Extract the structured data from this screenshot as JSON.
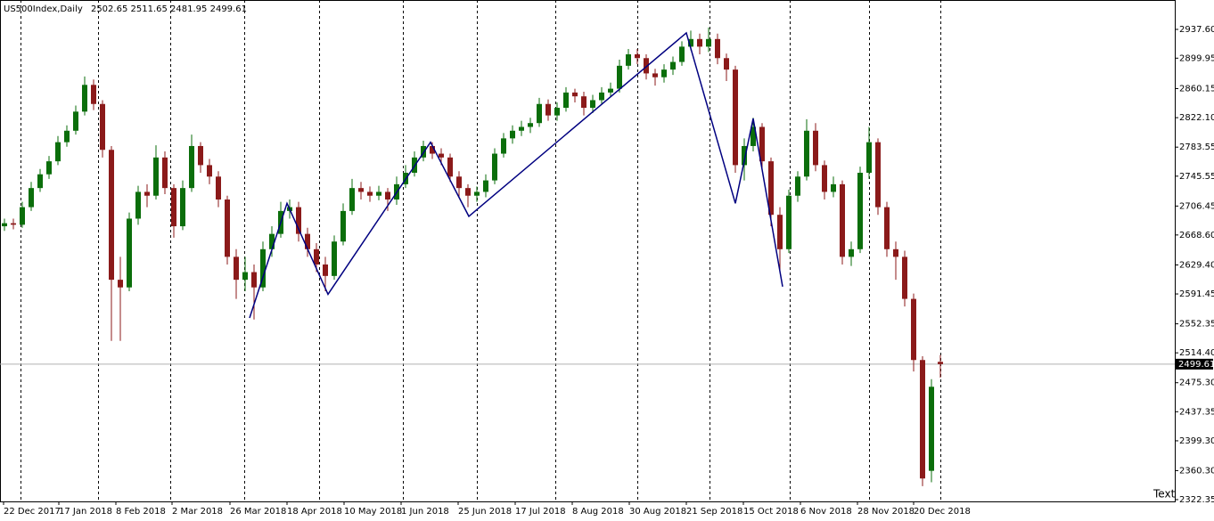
{
  "chart_data": {
    "type": "candlestick",
    "symbol": "US500Index,Daily",
    "annotation": "Text",
    "up_color": "#0b6e0b",
    "down_color": "#8b1a1a",
    "zigzag_color": "#000080",
    "xlim": [
      -0.5,
      131.3
    ],
    "ylim": [
      2320.0,
      2976.05
    ],
    "yticks": [
      {
        "value": 2937.6,
        "label": "2937.60"
      },
      {
        "value": 2899.95,
        "label": "2899.95"
      },
      {
        "value": 2860.15,
        "label": "2860.15"
      },
      {
        "value": 2822.1,
        "label": "2822.10"
      },
      {
        "value": 2783.55,
        "label": "2783.55"
      },
      {
        "value": 2745.55,
        "label": "2745.55"
      },
      {
        "value": 2706.45,
        "label": "2706.45"
      },
      {
        "value": 2668.6,
        "label": "2668.60"
      },
      {
        "value": 2629.4,
        "label": "2629.40"
      },
      {
        "value": 2591.45,
        "label": "2591.45"
      },
      {
        "value": 2552.35,
        "label": "2552.35"
      },
      {
        "value": 2514.4,
        "label": "2514.40"
      },
      {
        "value": 2475.3,
        "label": "2475.30"
      },
      {
        "value": 2437.35,
        "label": "2437.35"
      },
      {
        "value": 2399.3,
        "label": "2399.30"
      },
      {
        "value": 2360.3,
        "label": "2360.30"
      },
      {
        "value": 2322.35,
        "label": "2322.35"
      }
    ],
    "xticks": [
      {
        "value": -0.1,
        "label": "22 Dec 2017"
      },
      {
        "value": 6.1,
        "label": "17 Jan 2018"
      },
      {
        "value": 12.5,
        "label": "8 Feb 2018"
      },
      {
        "value": 18.8,
        "label": "2 Mar 2018"
      },
      {
        "value": 25.3,
        "label": "26 Mar 2018"
      },
      {
        "value": 31.7,
        "label": "18 Apr 2018"
      },
      {
        "value": 38.1,
        "label": "10 May 2018"
      },
      {
        "value": 44.5,
        "label": "1 Jun 2018"
      },
      {
        "value": 50.9,
        "label": "25 Jun 2018"
      },
      {
        "value": 57.3,
        "label": "17 Jul 2018"
      },
      {
        "value": 63.7,
        "label": "8 Aug 2018"
      },
      {
        "value": 70.1,
        "label": "30 Aug 2018"
      },
      {
        "value": 76.5,
        "label": "21 Sep 2018"
      },
      {
        "value": 82.9,
        "label": "15 Oct 2018"
      },
      {
        "value": 89.3,
        "label": "6 Nov 2018"
      },
      {
        "value": 95.7,
        "label": "28 Nov 2018"
      },
      {
        "value": 102,
        "label": "20 Dec 2018"
      }
    ],
    "xgrid": [
      1.8,
      10.5,
      18.6,
      26.9,
      35.3,
      44.7,
      53,
      61.8,
      71,
      79.1,
      88.1,
      97,
      105
    ],
    "open": [
      2680,
      2684,
      2682,
      2705,
      2730,
      2748,
      2765,
      2790,
      2805,
      2830,
      2865,
      2840,
      2780,
      2610,
      2600,
      2690,
      2725,
      2720,
      2770,
      2730,
      2680,
      2730,
      2785,
      2760,
      2745,
      2715,
      2640,
      2610,
      2620,
      2600,
      2650,
      2670,
      2700,
      2705,
      2670,
      2650,
      2630,
      2615,
      2660,
      2700,
      2730,
      2725,
      2720,
      2725,
      2715,
      2735,
      2750,
      2770,
      2785,
      2775,
      2770,
      2745,
      2730,
      2720,
      2725,
      2740,
      2775,
      2795,
      2805,
      2810,
      2815,
      2840,
      2825,
      2835,
      2855,
      2850,
      2835,
      2845,
      2855,
      2860,
      2890,
      2905,
      2900,
      2880,
      2875,
      2885,
      2895,
      2915,
      2925,
      2915,
      2925,
      2900,
      2885,
      2760,
      2785,
      2810,
      2765,
      2695,
      2650,
      2720,
      2745,
      2805,
      2760,
      2725,
      2735,
      2640,
      2650,
      2750,
      2790,
      2705,
      2650,
      2640,
      2585,
      2505,
      2360,
      2502.65
    ],
    "high": [
      2690,
      2690,
      2712,
      2738,
      2755,
      2772,
      2798,
      2812,
      2838,
      2876,
      2872,
      2845,
      2785,
      2640,
      2698,
      2733,
      2735,
      2786,
      2778,
      2735,
      2740,
      2800,
      2790,
      2768,
      2752,
      2720,
      2650,
      2640,
      2630,
      2660,
      2680,
      2712,
      2715,
      2712,
      2678,
      2658,
      2640,
      2668,
      2710,
      2742,
      2738,
      2732,
      2733,
      2730,
      2745,
      2760,
      2778,
      2792,
      2790,
      2782,
      2775,
      2752,
      2735,
      2732,
      2748,
      2782,
      2802,
      2812,
      2818,
      2822,
      2848,
      2846,
      2842,
      2862,
      2860,
      2856,
      2852,
      2862,
      2868,
      2898,
      2912,
      2912,
      2905,
      2886,
      2892,
      2902,
      2922,
      2936,
      2932,
      2940,
      2932,
      2906,
      2890,
      2795,
      2822,
      2815,
      2770,
      2705,
      2728,
      2752,
      2820,
      2815,
      2766,
      2745,
      2740,
      2660,
      2758,
      2810,
      2795,
      2712,
      2660,
      2648,
      2592,
      2510,
      2480,
      2511.65
    ],
    "low": [
      2674,
      2676,
      2678,
      2700,
      2725,
      2742,
      2760,
      2784,
      2800,
      2825,
      2832,
      2770,
      2530,
      2530,
      2595,
      2682,
      2705,
      2715,
      2722,
      2665,
      2675,
      2725,
      2750,
      2735,
      2705,
      2630,
      2585,
      2595,
      2558,
      2595,
      2640,
      2665,
      2690,
      2660,
      2640,
      2620,
      2595,
      2610,
      2655,
      2695,
      2715,
      2712,
      2714,
      2700,
      2708,
      2730,
      2745,
      2765,
      2768,
      2760,
      2738,
      2718,
      2705,
      2712,
      2718,
      2735,
      2770,
      2788,
      2798,
      2802,
      2810,
      2818,
      2818,
      2830,
      2842,
      2825,
      2828,
      2840,
      2850,
      2855,
      2885,
      2892,
      2872,
      2864,
      2868,
      2878,
      2890,
      2910,
      2905,
      2908,
      2892,
      2870,
      2750,
      2740,
      2778,
      2755,
      2680,
      2620,
      2645,
      2712,
      2740,
      2752,
      2715,
      2718,
      2630,
      2628,
      2645,
      2742,
      2695,
      2640,
      2610,
      2575,
      2490,
      2340,
      2345,
      2481.95
    ],
    "close": [
      2684,
      2682,
      2705,
      2730,
      2748,
      2765,
      2790,
      2805,
      2830,
      2865,
      2840,
      2780,
      2610,
      2600,
      2690,
      2725,
      2720,
      2770,
      2730,
      2680,
      2730,
      2785,
      2760,
      2745,
      2715,
      2640,
      2610,
      2620,
      2600,
      2650,
      2670,
      2700,
      2705,
      2670,
      2650,
      2630,
      2615,
      2660,
      2700,
      2730,
      2725,
      2720,
      2725,
      2715,
      2735,
      2750,
      2770,
      2785,
      2775,
      2770,
      2745,
      2730,
      2720,
      2725,
      2740,
      2775,
      2795,
      2805,
      2810,
      2815,
      2840,
      2825,
      2835,
      2855,
      2850,
      2835,
      2845,
      2855,
      2860,
      2890,
      2905,
      2900,
      2880,
      2875,
      2885,
      2895,
      2915,
      2925,
      2915,
      2925,
      2900,
      2885,
      2760,
      2785,
      2810,
      2765,
      2695,
      2650,
      2720,
      2745,
      2805,
      2760,
      2725,
      2735,
      2640,
      2650,
      2750,
      2790,
      2705,
      2650,
      2640,
      2585,
      2505,
      2350,
      2470,
      2499.61
    ],
    "zigzag": {
      "x": [
        27.5,
        31.7,
        36.3,
        47.8,
        52.1,
        76.5,
        82.0,
        84.0,
        87.3
      ],
      "y": [
        2560,
        2710,
        2591,
        2790,
        2693,
        2933,
        2710,
        2821,
        2601
      ]
    }
  }
}
